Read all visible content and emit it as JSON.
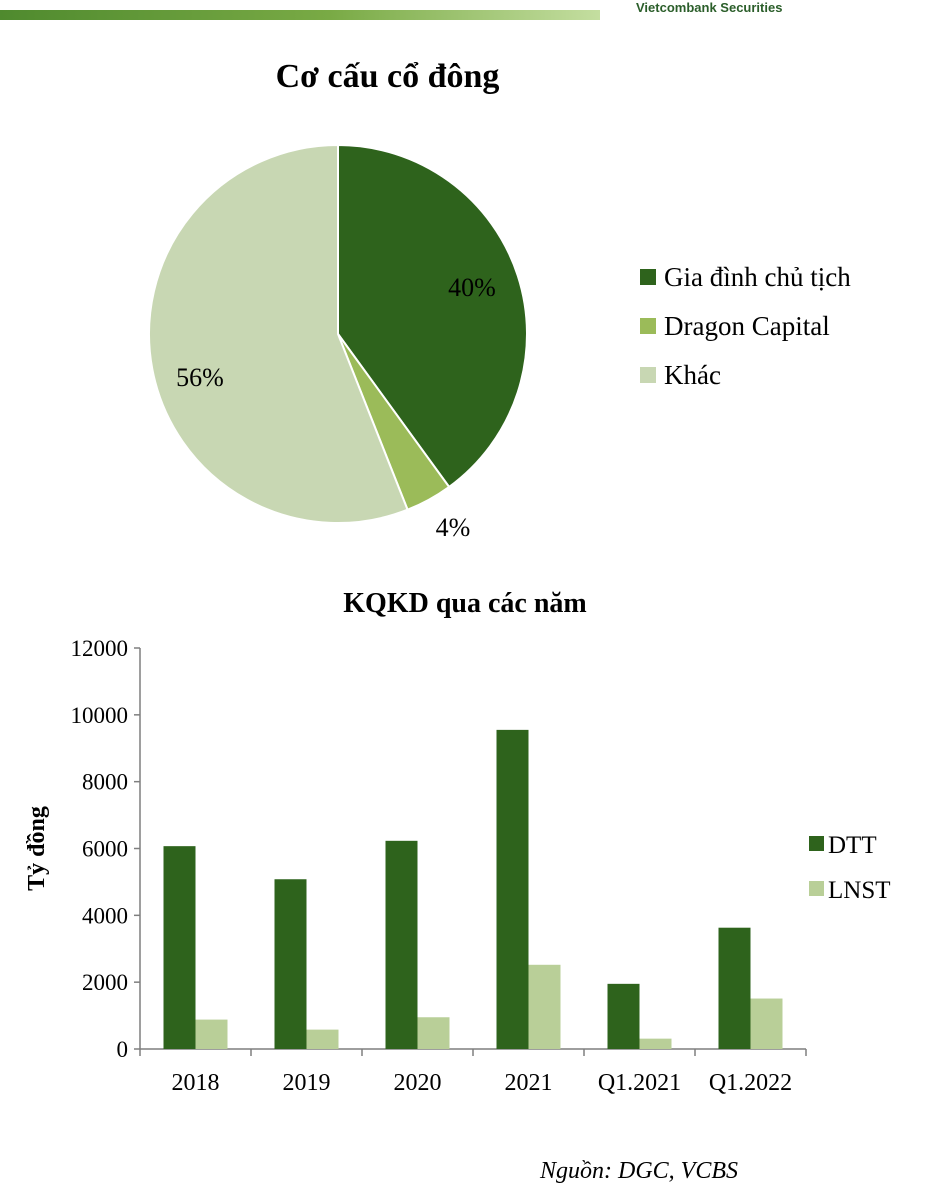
{
  "brand": "Vietcombank Securities",
  "source": "Nguồn: DGC, VCBS",
  "colors": {
    "dark_green": "#2e631c",
    "mid_green": "#9bbb59",
    "light_green": "#c8d7b3",
    "bar_light": "#b9cf98",
    "brand": "#2b5e2a"
  },
  "chart_data": [
    {
      "type": "pie",
      "title": "Cơ cấu cổ đông",
      "slices": [
        {
          "name": "Gia đình chủ tịch",
          "value": 40,
          "label": "40%"
        },
        {
          "name": "Dragon Capital",
          "value": 4,
          "label": "4%"
        },
        {
          "name": "Khác",
          "value": 56,
          "label": "56%"
        }
      ],
      "legend_position": "right"
    },
    {
      "type": "bar",
      "title": "KQKD qua các năm",
      "ylabel": "Tỷ đồng",
      "xlabel": "",
      "ylim": [
        0,
        12000
      ],
      "yticks": [
        0,
        2000,
        4000,
        6000,
        8000,
        10000,
        12000
      ],
      "categories": [
        "2018",
        "2019",
        "2020",
        "2021",
        "Q1.2021",
        "Q1.2022"
      ],
      "series": [
        {
          "name": "DTT",
          "values": [
            6070,
            5080,
            6230,
            9550,
            1950,
            3630
          ]
        },
        {
          "name": "LNST",
          "values": [
            880,
            580,
            950,
            2520,
            310,
            1510
          ]
        }
      ],
      "grid": false,
      "legend_position": "right"
    }
  ]
}
